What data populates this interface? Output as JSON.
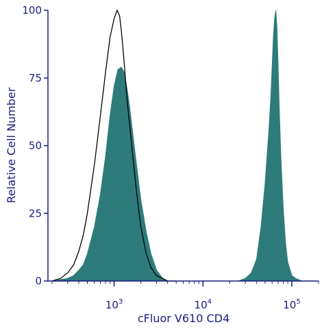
{
  "chart_data": {
    "type": "area",
    "xlabel": "cFluor V610 CD4",
    "ylabel": "Relative Cell Number",
    "xscale": "log",
    "xlim": [
      180,
      200000
    ],
    "ylim": [
      0,
      100
    ],
    "y_ticks": [
      {
        "value": 0,
        "label": "0"
      },
      {
        "value": 25,
        "label": "25"
      },
      {
        "value": 50,
        "label": "50"
      },
      {
        "value": 75,
        "label": "75"
      },
      {
        "value": 100,
        "label": "100"
      }
    ],
    "x_ticks": [
      {
        "value": 1000,
        "base": "10",
        "exp": "3"
      },
      {
        "value": 10000,
        "base": "10",
        "exp": "4"
      },
      {
        "value": 100000,
        "base": "10",
        "exp": "5"
      }
    ],
    "grid": false,
    "colors": {
      "filled": "#2e7b7b",
      "outline": "#000000",
      "axis": "#1a1a80"
    },
    "series": [
      {
        "style": "outline",
        "x": [
          200,
          250,
          300,
          350,
          400,
          450,
          500,
          600,
          700,
          800,
          900,
          1000,
          1080,
          1150,
          1200,
          1280,
          1400,
          1600,
          1800,
          2000,
          2300,
          2600,
          3000,
          3500,
          4000,
          5000
        ],
        "y": [
          0,
          1,
          3,
          6,
          11,
          17,
          25,
          43,
          61,
          77,
          90,
          97,
          100,
          98,
          93,
          83,
          67,
          48,
          32,
          20,
          10,
          5,
          2,
          1,
          0,
          0
        ]
      },
      {
        "style": "filled",
        "x": [
          200,
          300,
          350,
          400,
          450,
          500,
          600,
          700,
          800,
          900,
          1000,
          1100,
          1200,
          1300,
          1400,
          1500,
          1600,
          1800,
          2000,
          2300,
          2600,
          3000,
          3500,
          4000,
          5000
        ],
        "y": [
          0,
          1,
          2,
          4,
          6,
          10,
          20,
          32,
          46,
          61,
          72,
          78,
          79,
          77,
          71,
          64,
          56,
          42,
          30,
          18,
          10,
          4,
          1,
          0,
          0
        ]
      },
      {
        "style": "filled",
        "x": [
          25000,
          30000,
          35000,
          40000,
          45000,
          50000,
          55000,
          58000,
          60000,
          62000,
          64000,
          66000,
          68000,
          70000,
          72000,
          75000,
          80000,
          85000,
          90000,
          100000,
          110000,
          130000
        ],
        "y": [
          0,
          1,
          3,
          8,
          20,
          36,
          55,
          68,
          79,
          90,
          97,
          100,
          94,
          80,
          65,
          47,
          27,
          14,
          7,
          2,
          1,
          0
        ]
      }
    ]
  }
}
